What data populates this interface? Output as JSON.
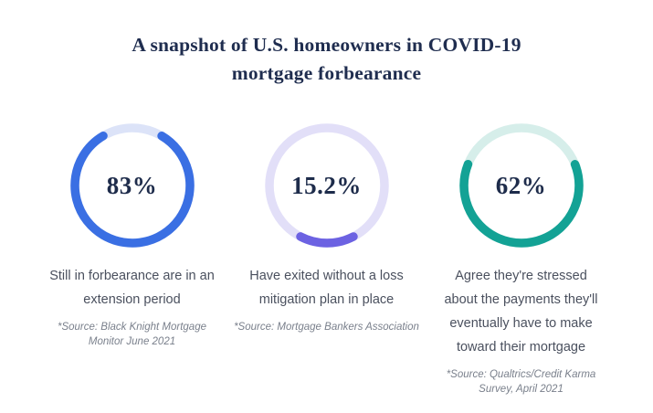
{
  "title": "A snapshot of U.S. homeowners in COVID-19 mortgage forbearance",
  "chart_data": {
    "type": "pie",
    "subtype": "donut-rings",
    "units": "%",
    "legend_position": "none",
    "charts": [
      {
        "value": 83,
        "label": "83%",
        "caption": "Still in forbearance are in an extension period",
        "source": "*Source: Black Knight Mortgage Monitor June 2021",
        "color": "#3A6FE3",
        "track_color": "#DCE3F8"
      },
      {
        "value": 15.2,
        "label": "15.2%",
        "caption": "Have exited without a loss mitigation plan in place",
        "source": "*Source: Mortgage Bankers Association",
        "color": "#6C62E2",
        "track_color": "#E2DFF8"
      },
      {
        "value": 62,
        "label": "62%",
        "caption": "Agree they're stressed about the payments they'll eventually have to make toward their mortgage",
        "source": "*Source: Qualtrics/Credit Karma Survey, April 2021",
        "color": "#13A295",
        "track_color": "#D6EEEA"
      }
    ]
  },
  "colors": {
    "background": "#FFFFFF",
    "title_text": "#1F2D4F",
    "percent_text": "#1E2C4B",
    "caption_text": "#4A505E",
    "source_text": "#7A808C"
  }
}
